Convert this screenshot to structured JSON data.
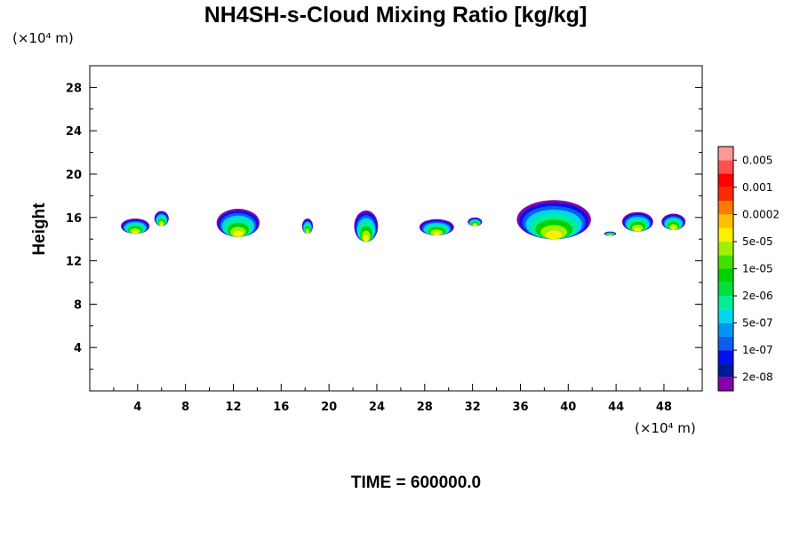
{
  "chart_data": {
    "type": "heatmap",
    "title": "NH4SH-s-Cloud Mixing Ratio [kg/kg]",
    "ylabel": "Height",
    "xlabel": "",
    "y_unit_label": "(×10⁴ m)",
    "x_unit_label": "(×10⁴ m)",
    "xlim": [
      0,
      51.2
    ],
    "ylim": [
      0,
      30
    ],
    "x_ticks": [
      "4",
      "8",
      "12",
      "16",
      "20",
      "24",
      "28",
      "32",
      "36",
      "40",
      "44",
      "48"
    ],
    "y_ticks": [
      "4",
      "8",
      "12",
      "16",
      "20",
      "24",
      "28"
    ],
    "colorbar": {
      "levels": [
        "2e-08",
        "1e-07",
        "5e-07",
        "2e-06",
        "1e-05",
        "5e-05",
        "0.0002",
        "0.001",
        "0.005"
      ],
      "colors": [
        "#8800aa",
        "#00189c",
        "#0010ee",
        "#0b5ef0",
        "#0095f5",
        "#00d6f0",
        "#00ef94",
        "#00e03a",
        "#00d200",
        "#44e000",
        "#a0f000",
        "#fff000",
        "#ffc000",
        "#ff7a00",
        "#ff2a00",
        "#ff0000",
        "#ff5050",
        "#ff9898"
      ]
    },
    "clouds": [
      {
        "x": 3.8,
        "y": 15.2,
        "w": 2.4,
        "h": 1.4
      },
      {
        "x": 6.0,
        "y": 15.9,
        "w": 1.2,
        "h": 1.4
      },
      {
        "x": 12.4,
        "y": 15.5,
        "w": 3.6,
        "h": 2.6
      },
      {
        "x": 18.2,
        "y": 15.2,
        "w": 0.9,
        "h": 1.4
      },
      {
        "x": 23.1,
        "y": 15.2,
        "w": 2.0,
        "h": 2.9
      },
      {
        "x": 29.0,
        "y": 15.1,
        "w": 2.9,
        "h": 1.5
      },
      {
        "x": 32.2,
        "y": 15.6,
        "w": 1.2,
        "h": 0.8
      },
      {
        "x": 38.8,
        "y": 15.8,
        "w": 6.2,
        "h": 3.6
      },
      {
        "x": 43.5,
        "y": 14.5,
        "w": 1.0,
        "h": 0.4
      },
      {
        "x": 45.8,
        "y": 15.6,
        "w": 2.6,
        "h": 1.8
      },
      {
        "x": 48.8,
        "y": 15.6,
        "w": 2.0,
        "h": 1.5
      }
    ]
  },
  "footer": {
    "time_label": "TIME = 600000.0"
  }
}
